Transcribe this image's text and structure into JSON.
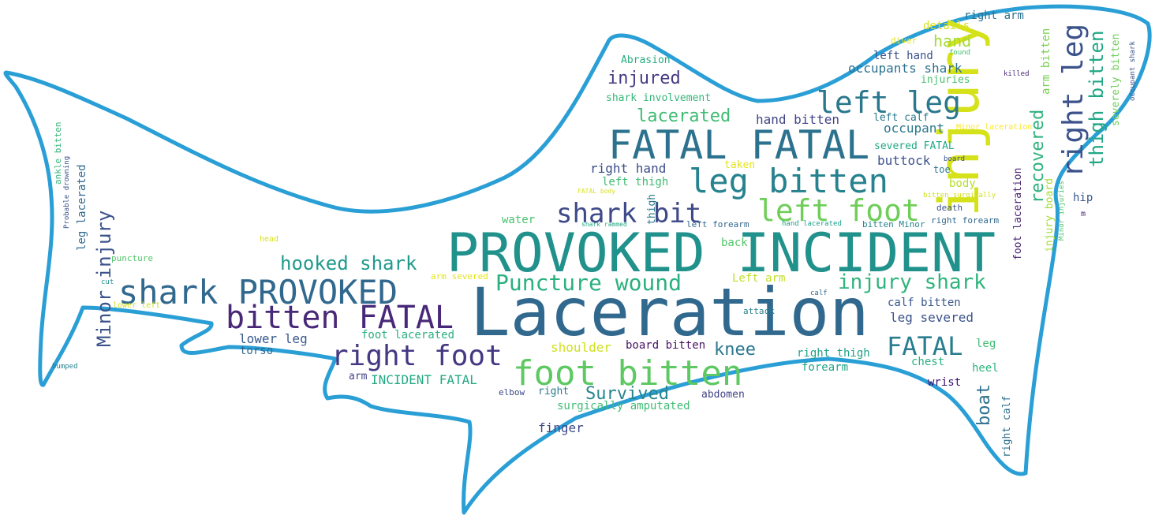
{
  "wordcloud": {
    "colors": {
      "outline": "#2a9fd6",
      "palette": [
        "#440154",
        "#482878",
        "#3e4a89",
        "#31688e",
        "#26828e",
        "#1f9e89",
        "#35b779",
        "#6ece58",
        "#b5de2b",
        "#fde725"
      ]
    },
    "words": [
      {
        "text": "Laceration",
        "color": "#31688e"
      },
      {
        "text": "PROVOKED INCIDENT",
        "color": "#21918c"
      },
      {
        "text": "injury",
        "color": "#d5e21a"
      },
      {
        "text": "FATAL FATAL",
        "color": "#2c728e"
      },
      {
        "text": "foot bitten",
        "color": "#5ec962"
      },
      {
        "text": "shark PROVOKED",
        "color": "#31688e"
      },
      {
        "text": "leg bitten",
        "color": "#26828e"
      },
      {
        "text": "bitten FATAL",
        "color": "#482878"
      },
      {
        "text": "left leg",
        "color": "#2a788e"
      },
      {
        "text": "left foot",
        "color": "#6ece58"
      },
      {
        "text": "right foot",
        "color": "#443983"
      },
      {
        "text": "right leg",
        "color": "#3b528b"
      },
      {
        "text": "shark bit",
        "color": "#3e4989"
      },
      {
        "text": "FATAL",
        "color": "#287d8e"
      },
      {
        "text": "Puncture wound",
        "color": "#2ab07f"
      },
      {
        "text": "injury shark",
        "color": "#2fb47c"
      },
      {
        "text": "hooked shark",
        "color": "#1f9a8a"
      },
      {
        "text": "thigh bitten",
        "color": "#22a785"
      },
      {
        "text": "Minor injury",
        "color": "#3b528b"
      },
      {
        "text": "lacerated",
        "color": "#3fbc73"
      },
      {
        "text": "injured",
        "color": "#443a83"
      },
      {
        "text": "Survived",
        "color": "#25858e"
      },
      {
        "text": "knee",
        "color": "#2a788e"
      },
      {
        "text": "recovered",
        "color": "#2db27d"
      },
      {
        "text": "boat",
        "color": "#2d708e"
      },
      {
        "text": "hand",
        "color": "#a5db36"
      },
      {
        "text": "occupants shark",
        "color": "#2c728e"
      },
      {
        "text": "leg severed",
        "color": "#3b528b"
      },
      {
        "text": "INCIDENT FATAL",
        "color": "#23a983"
      },
      {
        "text": "shoulder",
        "color": "#d0e11c"
      },
      {
        "text": "hand bitten",
        "color": "#414487"
      },
      {
        "text": "right hand",
        "color": "#3d4d8a"
      },
      {
        "text": "lower leg",
        "color": "#38598c"
      },
      {
        "text": "buttock",
        "color": "#3b528b"
      },
      {
        "text": "occupant",
        "color": "#2a788e"
      },
      {
        "text": "right arm",
        "color": "#2c728e"
      },
      {
        "text": "arm bitten",
        "color": "#7ad151"
      },
      {
        "text": "severely bitten",
        "color": "#6ece58"
      },
      {
        "text": "left thigh",
        "color": "#3fbc73"
      },
      {
        "text": "finger",
        "color": "#3e4989"
      },
      {
        "text": "right thigh",
        "color": "#1fa187"
      },
      {
        "text": "calf bitten",
        "color": "#39568c"
      },
      {
        "text": "foot lacerated",
        "color": "#2ab07f"
      },
      {
        "text": "surgically amputated",
        "color": "#3fbc73"
      },
      {
        "text": "board bitten",
        "color": "#471164"
      },
      {
        "text": "leg lacerated",
        "color": "#31688e"
      },
      {
        "text": "foot laceration",
        "color": "#482475"
      },
      {
        "text": "right calf",
        "color": "#2c728e"
      },
      {
        "text": "Left arm",
        "color": "#c2df23"
      },
      {
        "text": "forearm",
        "color": "#1fa187"
      },
      {
        "text": "Abrasion",
        "color": "#27ad81"
      },
      {
        "text": "shark involvement",
        "color": "#35b779"
      },
      {
        "text": "severed FATAL",
        "color": "#22a884"
      },
      {
        "text": "left calf",
        "color": "#2a788e"
      },
      {
        "text": "left hand",
        "color": "#3b528b"
      },
      {
        "text": "injuries",
        "color": "#4ac16d"
      },
      {
        "text": "details",
        "color": "#d8e219"
      },
      {
        "text": "body",
        "color": "#b5de2b"
      },
      {
        "text": "taken",
        "color": "#e5e419"
      },
      {
        "text": "toe",
        "color": "#2a788e"
      },
      {
        "text": "heel",
        "color": "#2fb47c"
      },
      {
        "text": "chest",
        "color": "#2ab07f"
      },
      {
        "text": "wrist",
        "color": "#3b0f70"
      },
      {
        "text": "leg",
        "color": "#3fbc73"
      },
      {
        "text": "torso",
        "color": "#31688e"
      },
      {
        "text": "back",
        "color": "#52c569"
      },
      {
        "text": "water",
        "color": "#4ac16d"
      },
      {
        "text": "abdomen",
        "color": "#414487"
      },
      {
        "text": "right",
        "color": "#2a788e"
      },
      {
        "text": "arm",
        "color": "#414487"
      },
      {
        "text": "elbow",
        "color": "#3e4a89"
      },
      {
        "text": "thigh",
        "color": "#2a788e"
      },
      {
        "text": "hip",
        "color": "#39568c"
      },
      {
        "text": "injury board",
        "color": "#a5db36"
      },
      {
        "text": "death",
        "color": "#3b528b"
      },
      {
        "text": "right forearm",
        "color": "#31688e"
      },
      {
        "text": "bitten Minor",
        "color": "#26828e"
      },
      {
        "text": "left forearm",
        "color": "#31688e"
      },
      {
        "text": "hand lacerated",
        "color": "#1f9e89"
      },
      {
        "text": "shark rammed",
        "color": "#22a884"
      },
      {
        "text": "FATAL body",
        "color": "#d8e219"
      },
      {
        "text": "bitten surgically",
        "color": "#d0e11c"
      },
      {
        "text": "board",
        "color": "#3b528b"
      },
      {
        "text": "Minor laceration",
        "color": "#fde725"
      },
      {
        "text": "diver",
        "color": "#e5e419"
      },
      {
        "text": "found",
        "color": "#44bf70"
      },
      {
        "text": "killed",
        "color": "#482878"
      },
      {
        "text": "occupant shark",
        "color": "#3b528b"
      },
      {
        "text": "Minor injuries",
        "color": "#4ac16d"
      },
      {
        "text": "m",
        "color": "#482878"
      },
      {
        "text": "attack",
        "color": "#26828e"
      },
      {
        "text": "calf",
        "color": "#31688e"
      },
      {
        "text": "arm severed",
        "color": "#e5e419"
      },
      {
        "text": "puncture",
        "color": "#52c569"
      },
      {
        "text": "head",
        "color": "#d8e219"
      },
      {
        "text": "cut",
        "color": "#21918c"
      },
      {
        "text": "lower left",
        "color": "#d0e11c"
      },
      {
        "text": "bumped",
        "color": "#26828e"
      },
      {
        "text": "ankle bitten",
        "color": "#35b779"
      },
      {
        "text": "Probable drowning",
        "color": "#3b528b"
      }
    ]
  }
}
